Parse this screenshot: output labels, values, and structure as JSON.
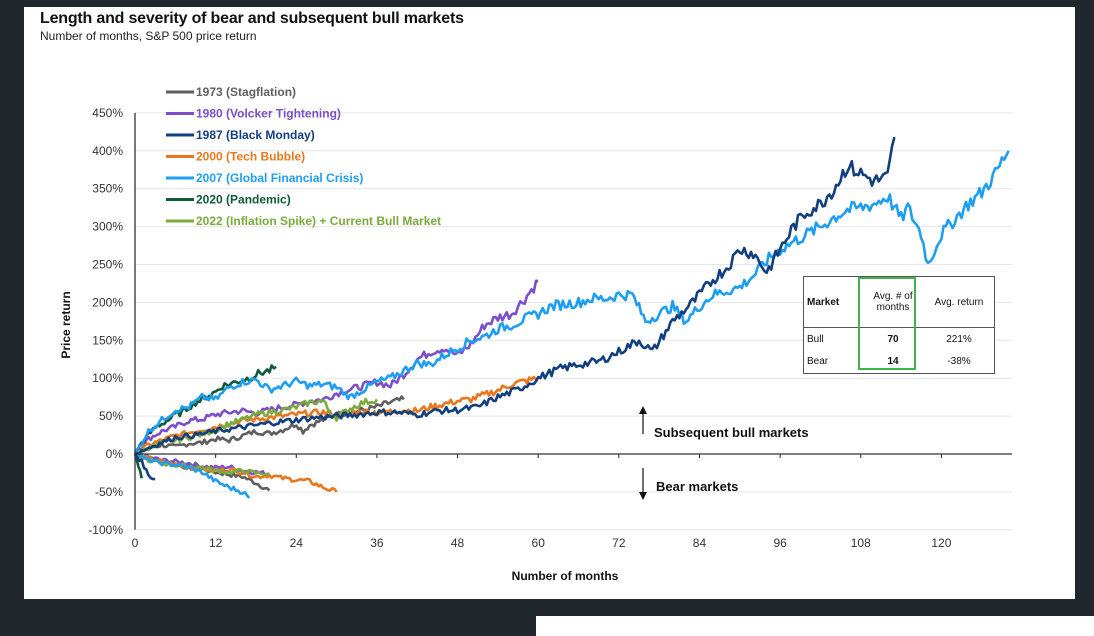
{
  "chart_data": {
    "type": "line",
    "title": "Length and severity of bear and subsequent bull markets",
    "subtitle": "Number of months, S&P 500 price return",
    "xlabel": "Number of months",
    "ylabel": "Price return",
    "xlim": [
      0,
      130
    ],
    "ylim": [
      -100,
      450
    ],
    "x_ticks": [
      0,
      12,
      24,
      36,
      48,
      60,
      72,
      84,
      96,
      108,
      120
    ],
    "y_ticks": [
      -100,
      -50,
      0,
      50,
      100,
      150,
      200,
      250,
      300,
      350,
      400,
      450
    ],
    "x_tick_labels": [
      "0",
      "12",
      "24",
      "36",
      "48",
      "60",
      "72",
      "84",
      "96",
      "108",
      "120"
    ],
    "y_tick_labels": [
      "-100%",
      "-50%",
      "0%",
      "50%",
      "100%",
      "150%",
      "200%",
      "250%",
      "300%",
      "350%",
      "400%",
      "450%"
    ],
    "grid": "horizontal",
    "legend_position": "top-left",
    "series": [
      {
        "name": "1973 (Stagflation)",
        "color": "#5f5f5f",
        "bear": [
          [
            0,
            0
          ],
          [
            2,
            -6
          ],
          [
            4,
            -10
          ],
          [
            6,
            -13
          ],
          [
            8,
            -18
          ],
          [
            10,
            -20
          ],
          [
            12,
            -24
          ],
          [
            14,
            -27
          ],
          [
            16,
            -30
          ],
          [
            18,
            -38
          ],
          [
            20,
            -48
          ]
        ],
        "bull": [
          [
            0,
            0
          ],
          [
            2,
            8
          ],
          [
            4,
            12
          ],
          [
            6,
            9
          ],
          [
            8,
            14
          ],
          [
            10,
            15
          ],
          [
            12,
            20
          ],
          [
            14,
            18
          ],
          [
            16,
            24
          ],
          [
            18,
            30
          ],
          [
            20,
            27
          ],
          [
            22,
            32
          ],
          [
            24,
            40
          ],
          [
            25,
            30
          ],
          [
            26,
            38
          ],
          [
            28,
            45
          ],
          [
            30,
            52
          ],
          [
            32,
            55
          ],
          [
            34,
            58
          ],
          [
            36,
            62
          ],
          [
            38,
            68
          ],
          [
            40,
            72
          ]
        ]
      },
      {
        "name": "1980 (Volcker Tightening)",
        "color": "#7b4fc9",
        "bear": [
          [
            0,
            0
          ],
          [
            2,
            -4
          ],
          [
            4,
            -8
          ],
          [
            6,
            -10
          ],
          [
            8,
            -12
          ],
          [
            10,
            -16
          ],
          [
            12,
            -18
          ],
          [
            14,
            -17
          ],
          [
            16,
            -22
          ],
          [
            18,
            -24
          ],
          [
            20,
            -26
          ]
        ],
        "bull": [
          [
            0,
            0
          ],
          [
            2,
            20
          ],
          [
            4,
            30
          ],
          [
            6,
            36
          ],
          [
            8,
            44
          ],
          [
            10,
            46
          ],
          [
            12,
            52
          ],
          [
            14,
            55
          ],
          [
            16,
            57
          ],
          [
            18,
            54
          ],
          [
            20,
            58
          ],
          [
            22,
            62
          ],
          [
            24,
            65
          ],
          [
            26,
            70
          ],
          [
            28,
            72
          ],
          [
            30,
            80
          ],
          [
            32,
            85
          ],
          [
            34,
            90
          ],
          [
            36,
            95
          ],
          [
            38,
            90
          ],
          [
            40,
            105
          ],
          [
            42,
            125
          ],
          [
            44,
            135
          ],
          [
            46,
            140
          ],
          [
            48,
            130
          ],
          [
            50,
            145
          ],
          [
            52,
            170
          ],
          [
            54,
            180
          ],
          [
            56,
            185
          ],
          [
            58,
            205
          ],
          [
            60,
            228
          ]
        ]
      },
      {
        "name": "1987 (Black Monday)",
        "color": "#123f7d",
        "bear": [
          [
            0,
            0
          ],
          [
            1,
            -10
          ],
          [
            2,
            -28
          ],
          [
            3,
            -33
          ]
        ],
        "bull": [
          [
            0,
            0
          ],
          [
            3,
            12
          ],
          [
            6,
            22
          ],
          [
            9,
            25
          ],
          [
            12,
            30
          ],
          [
            15,
            34
          ],
          [
            18,
            38
          ],
          [
            21,
            42
          ],
          [
            24,
            45
          ],
          [
            27,
            48
          ],
          [
            30,
            50
          ],
          [
            33,
            52
          ],
          [
            36,
            55
          ],
          [
            39,
            55
          ],
          [
            42,
            52
          ],
          [
            45,
            57
          ],
          [
            48,
            58
          ],
          [
            51,
            62
          ],
          [
            54,
            75
          ],
          [
            57,
            85
          ],
          [
            60,
            100
          ],
          [
            63,
            112
          ],
          [
            66,
            118
          ],
          [
            69,
            122
          ],
          [
            72,
            135
          ],
          [
            75,
            150
          ],
          [
            77,
            135
          ],
          [
            80,
            175
          ],
          [
            83,
            200
          ],
          [
            86,
            230
          ],
          [
            88,
            245
          ],
          [
            90,
            270
          ],
          [
            92,
            265
          ],
          [
            94,
            240
          ],
          [
            96,
            270
          ],
          [
            98,
            300
          ],
          [
            100,
            320
          ],
          [
            102,
            330
          ],
          [
            104,
            350
          ],
          [
            106,
            380
          ],
          [
            108,
            370
          ],
          [
            110,
            360
          ],
          [
            112,
            365
          ],
          [
            113,
            418
          ]
        ]
      },
      {
        "name": "2000 (Tech Bubble)",
        "color": "#e8761c",
        "bear": [
          [
            0,
            0
          ],
          [
            2,
            -6
          ],
          [
            4,
            -10
          ],
          [
            6,
            -14
          ],
          [
            8,
            -18
          ],
          [
            10,
            -20
          ],
          [
            12,
            -22
          ],
          [
            14,
            -20
          ],
          [
            16,
            -24
          ],
          [
            18,
            -30
          ],
          [
            20,
            -28
          ],
          [
            22,
            -32
          ],
          [
            24,
            -34
          ],
          [
            26,
            -36
          ],
          [
            28,
            -44
          ],
          [
            30,
            -50
          ]
        ],
        "bull": [
          [
            0,
            0
          ],
          [
            2,
            12
          ],
          [
            4,
            18
          ],
          [
            6,
            24
          ],
          [
            8,
            28
          ],
          [
            10,
            32
          ],
          [
            12,
            36
          ],
          [
            14,
            40
          ],
          [
            16,
            44
          ],
          [
            18,
            46
          ],
          [
            20,
            48
          ],
          [
            22,
            50
          ],
          [
            24,
            52
          ],
          [
            26,
            54
          ],
          [
            28,
            55
          ],
          [
            30,
            52
          ],
          [
            32,
            54
          ],
          [
            34,
            56
          ],
          [
            36,
            55
          ],
          [
            38,
            56
          ],
          [
            40,
            58
          ],
          [
            42,
            57
          ],
          [
            44,
            62
          ],
          [
            46,
            66
          ],
          [
            48,
            70
          ],
          [
            50,
            72
          ],
          [
            52,
            78
          ],
          [
            54,
            84
          ],
          [
            56,
            92
          ],
          [
            58,
            96
          ],
          [
            60,
            100
          ]
        ]
      },
      {
        "name": "2007 (Global Financial Crisis)",
        "color": "#1e9ef0",
        "bear": [
          [
            0,
            0
          ],
          [
            2,
            -8
          ],
          [
            4,
            -12
          ],
          [
            6,
            -14
          ],
          [
            8,
            -18
          ],
          [
            10,
            -24
          ],
          [
            12,
            -36
          ],
          [
            14,
            -44
          ],
          [
            16,
            -50
          ],
          [
            17,
            -58
          ]
        ],
        "bull": [
          [
            0,
            0
          ],
          [
            2,
            30
          ],
          [
            4,
            45
          ],
          [
            6,
            58
          ],
          [
            8,
            62
          ],
          [
            10,
            75
          ],
          [
            12,
            72
          ],
          [
            14,
            88
          ],
          [
            16,
            95
          ],
          [
            18,
            98
          ],
          [
            20,
            85
          ],
          [
            22,
            90
          ],
          [
            24,
            96
          ],
          [
            26,
            90
          ],
          [
            28,
            92
          ],
          [
            30,
            88
          ],
          [
            32,
            75
          ],
          [
            34,
            85
          ],
          [
            36,
            95
          ],
          [
            38,
            100
          ],
          [
            40,
            110
          ],
          [
            42,
            120
          ],
          [
            44,
            118
          ],
          [
            46,
            130
          ],
          [
            48,
            140
          ],
          [
            50,
            150
          ],
          [
            52,
            155
          ],
          [
            54,
            165
          ],
          [
            56,
            170
          ],
          [
            58,
            178
          ],
          [
            60,
            185
          ],
          [
            62,
            195
          ],
          [
            64,
            198
          ],
          [
            66,
            200
          ],
          [
            68,
            205
          ],
          [
            70,
            205
          ],
          [
            72,
            210
          ],
          [
            74,
            210
          ],
          [
            76,
            175
          ],
          [
            78,
            185
          ],
          [
            80,
            195
          ],
          [
            82,
            175
          ],
          [
            84,
            195
          ],
          [
            86,
            210
          ],
          [
            88,
            215
          ],
          [
            90,
            220
          ],
          [
            92,
            235
          ],
          [
            94,
            255
          ],
          [
            96,
            270
          ],
          [
            98,
            280
          ],
          [
            100,
            290
          ],
          [
            102,
            300
          ],
          [
            104,
            312
          ],
          [
            106,
            322
          ],
          [
            108,
            325
          ],
          [
            110,
            330
          ],
          [
            112,
            340
          ],
          [
            114,
            310
          ],
          [
            115,
            325
          ],
          [
            117,
            290
          ],
          [
            118,
            250
          ],
          [
            120,
            290
          ],
          [
            122,
            310
          ],
          [
            124,
            330
          ],
          [
            126,
            345
          ],
          [
            128,
            370
          ],
          [
            130,
            400
          ]
        ]
      },
      {
        "name": "2020 (Pandemic)",
        "color": "#0e5a3b",
        "bear": [
          [
            0,
            0
          ],
          [
            0.5,
            -15
          ],
          [
            1,
            -32
          ]
        ],
        "bull": [
          [
            0,
            0
          ],
          [
            1,
            15
          ],
          [
            2,
            25
          ],
          [
            3,
            35
          ],
          [
            4,
            40
          ],
          [
            5,
            45
          ],
          [
            6,
            52
          ],
          [
            7,
            55
          ],
          [
            8,
            62
          ],
          [
            9,
            68
          ],
          [
            10,
            72
          ],
          [
            11,
            78
          ],
          [
            12,
            82
          ],
          [
            13,
            90
          ],
          [
            14,
            92
          ],
          [
            15,
            95
          ],
          [
            16,
            98
          ],
          [
            17,
            100
          ],
          [
            18,
            105
          ],
          [
            19,
            108
          ],
          [
            20,
            110
          ],
          [
            21,
            115
          ]
        ]
      },
      {
        "name": "2022 (Inflation Spike) + Current Bull Market",
        "color": "#7aab3c",
        "bear": [
          [
            0,
            0
          ],
          [
            2,
            -8
          ],
          [
            4,
            -12
          ],
          [
            6,
            -15
          ],
          [
            8,
            -16
          ],
          [
            10,
            -18
          ],
          [
            12,
            -22
          ],
          [
            14,
            -24
          ],
          [
            16,
            -22
          ],
          [
            18,
            -25
          ],
          [
            20,
            -26
          ]
        ],
        "bull": [
          [
            0,
            0
          ],
          [
            2,
            8
          ],
          [
            4,
            14
          ],
          [
            6,
            18
          ],
          [
            8,
            22
          ],
          [
            10,
            26
          ],
          [
            12,
            32
          ],
          [
            14,
            40
          ],
          [
            16,
            45
          ],
          [
            18,
            52
          ],
          [
            20,
            55
          ],
          [
            22,
            58
          ],
          [
            24,
            62
          ],
          [
            26,
            68
          ],
          [
            28,
            70
          ],
          [
            29,
            55
          ],
          [
            30,
            48
          ],
          [
            32,
            60
          ],
          [
            34,
            68
          ],
          [
            36,
            72
          ]
        ]
      }
    ],
    "annotations": {
      "bull_label": "Subsequent bull markets",
      "bear_label": "Bear markets"
    },
    "summary_table": {
      "headers": [
        "Market",
        "Avg. # of months",
        "Avg. return"
      ],
      "rows": [
        [
          "Bull",
          "70",
          "221%"
        ],
        [
          "Bear",
          "14",
          "-38%"
        ]
      ],
      "highlight_color": "#3cb54a"
    }
  }
}
